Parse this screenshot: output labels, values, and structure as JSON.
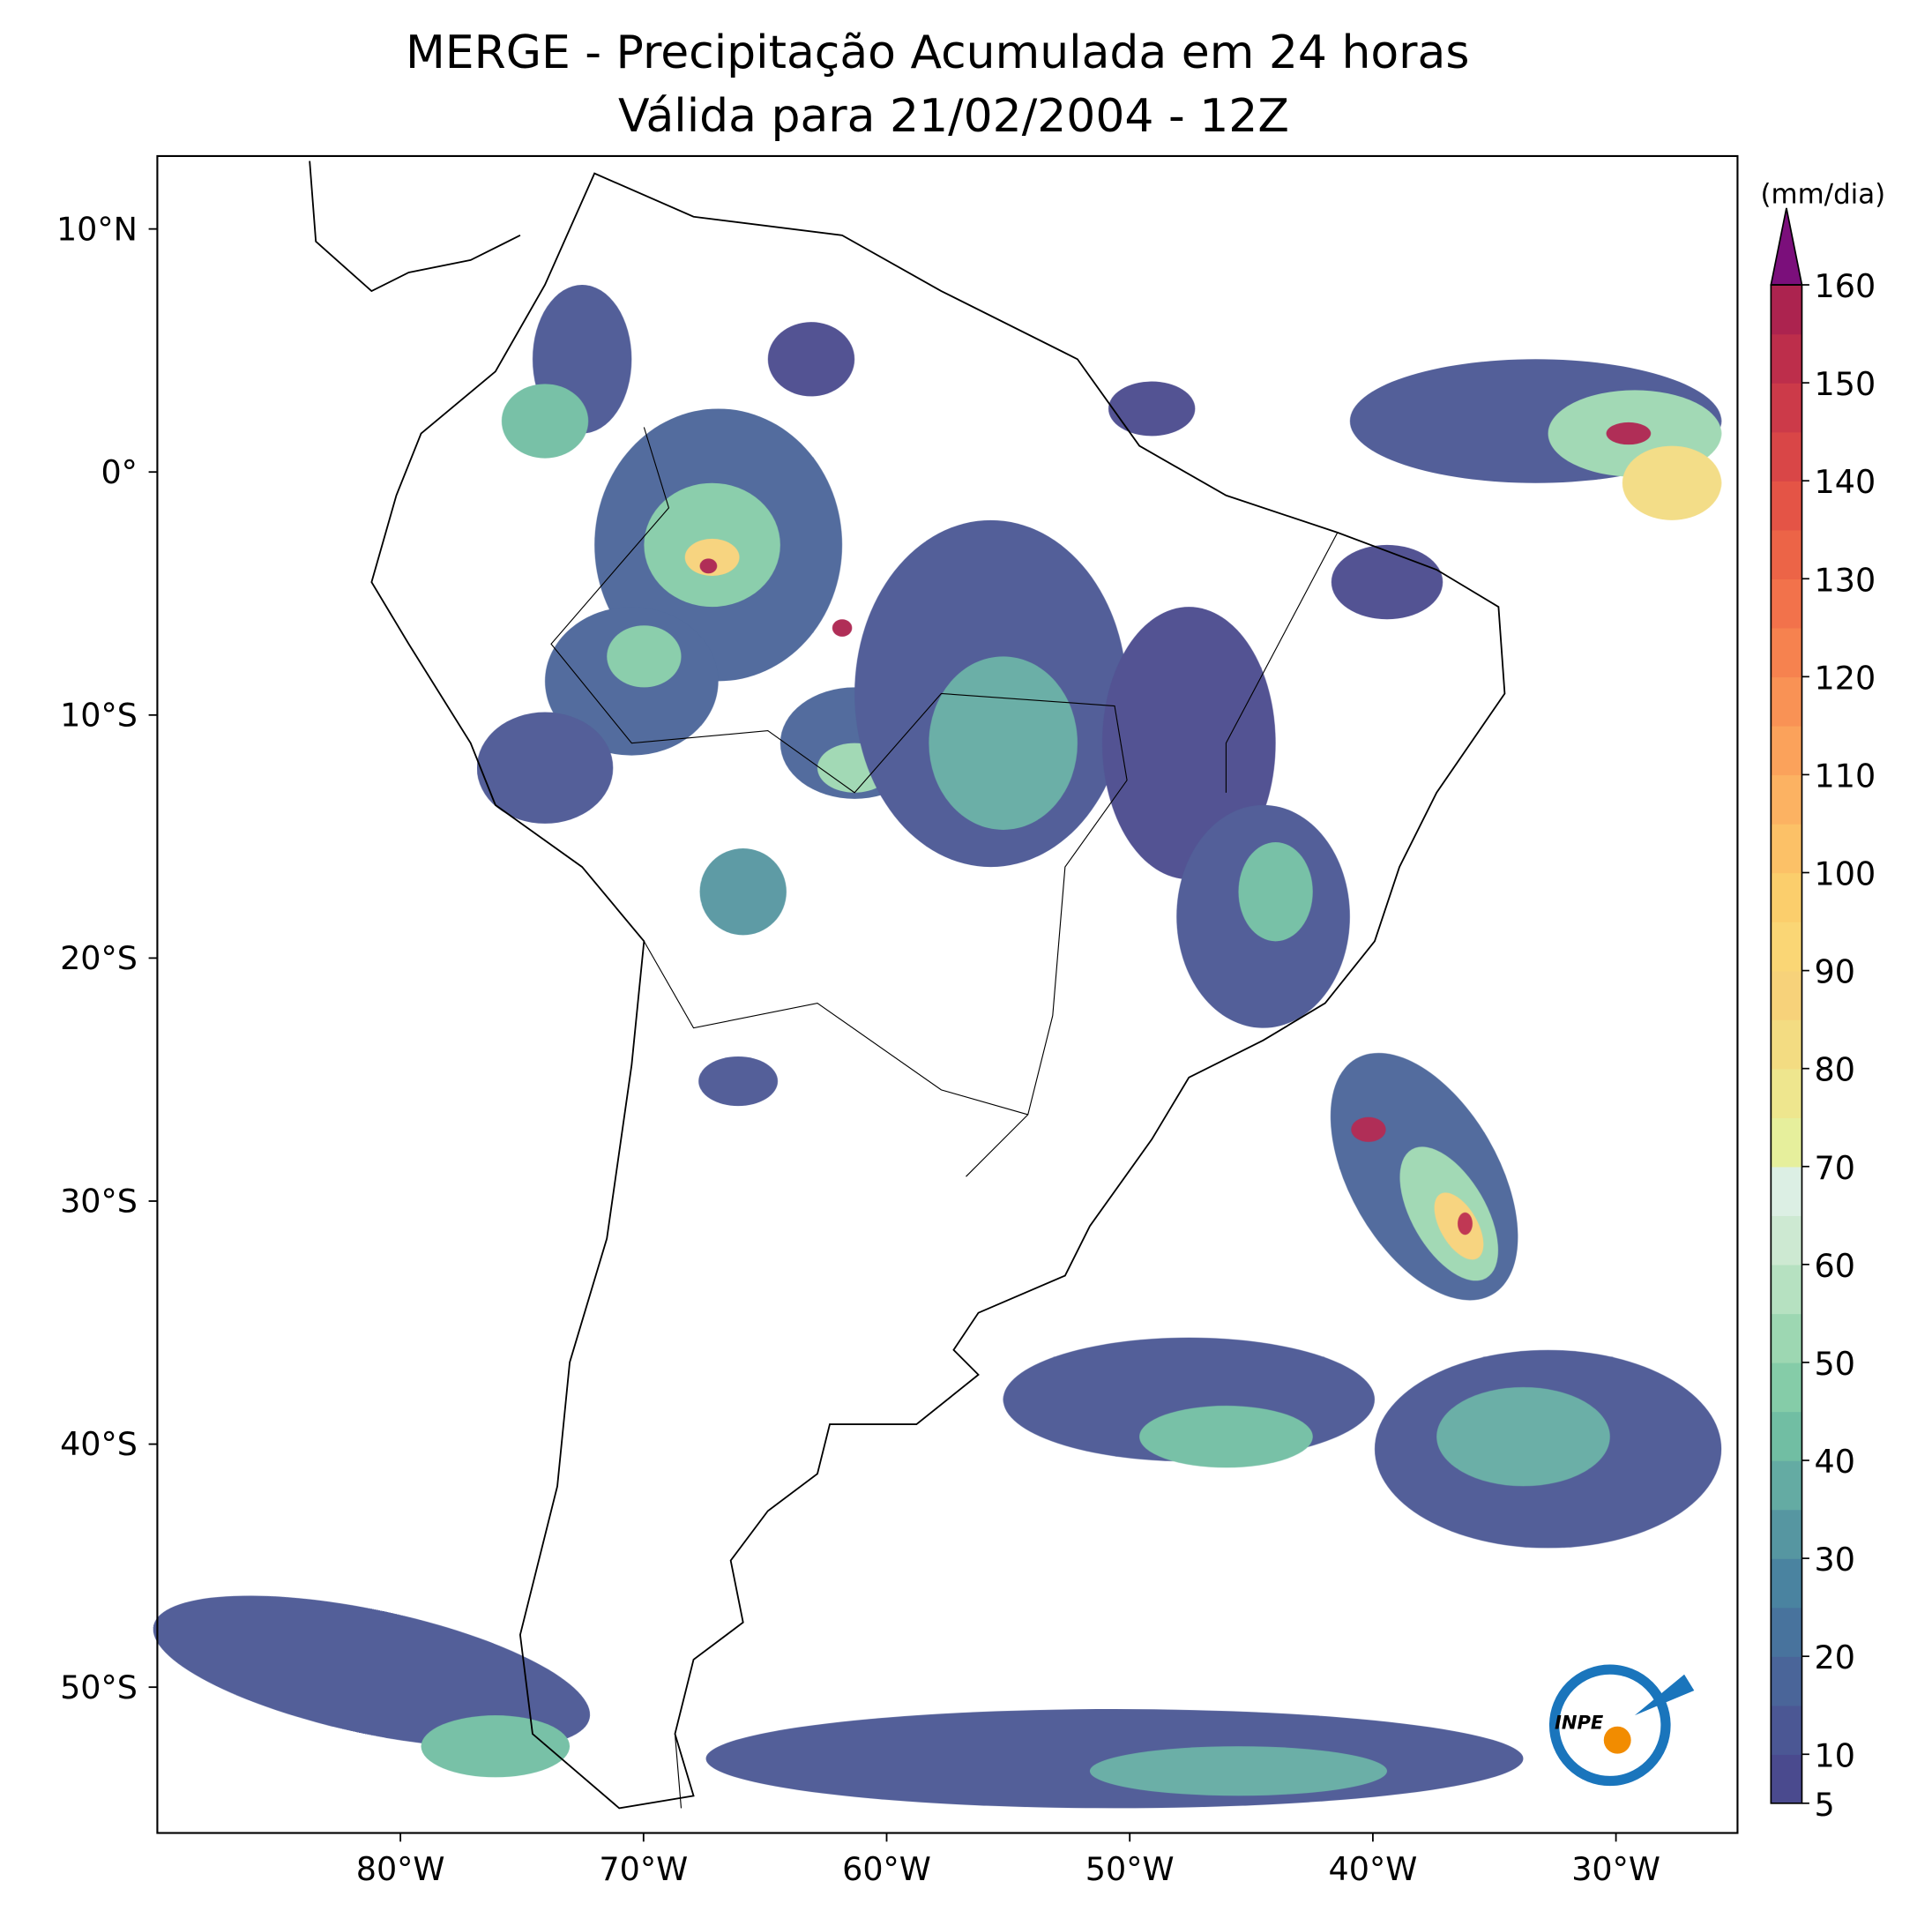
{
  "chart_data": {
    "type": "map",
    "title": "MERGE - Precipitação Acumulada em 24 horas",
    "subtitle": "Válida para 21/02/2004 - 12Z",
    "xlim": [
      -90,
      -25
    ],
    "ylim": [
      -56,
      13
    ],
    "xticks": [
      {
        "value": -80,
        "label": "80°W"
      },
      {
        "value": -70,
        "label": "70°W"
      },
      {
        "value": -60,
        "label": "60°W"
      },
      {
        "value": -50,
        "label": "50°W"
      },
      {
        "value": -40,
        "label": "40°W"
      },
      {
        "value": -30,
        "label": "30°W"
      }
    ],
    "yticks": [
      {
        "value": 10,
        "label": "10°N"
      },
      {
        "value": 0,
        "label": "0°"
      },
      {
        "value": -10,
        "label": "10°S"
      },
      {
        "value": -20,
        "label": "20°S"
      },
      {
        "value": -30,
        "label": "30°S"
      },
      {
        "value": -40,
        "label": "40°S"
      },
      {
        "value": -50,
        "label": "50°S"
      }
    ],
    "colorbar": {
      "label": "(mm/dia)",
      "lim": [
        5,
        160
      ],
      "ticks": [
        5,
        10,
        20,
        30,
        40,
        50,
        60,
        70,
        80,
        90,
        100,
        110,
        120,
        130,
        140,
        150,
        160
      ],
      "levels": [
        5,
        10,
        15,
        20,
        25,
        30,
        35,
        40,
        45,
        50,
        55,
        60,
        65,
        70,
        75,
        80,
        85,
        90,
        95,
        100,
        105,
        110,
        115,
        120,
        125,
        130,
        135,
        140,
        145,
        150,
        155,
        160
      ],
      "colors": [
        "#4a4a8e",
        "#4b5794",
        "#4a6599",
        "#48739d",
        "#4a83a0",
        "#5696a1",
        "#64aba3",
        "#71bea3",
        "#85cca8",
        "#9dd7b2",
        "#b6e1c1",
        "#cde9d2",
        "#dcefe4",
        "#e6ef9c",
        "#eee68e",
        "#f3dc82",
        "#f7d27a",
        "#fad675",
        "#fbce6c",
        "#fcc167",
        "#fcb262",
        "#fba25b",
        "#f99255",
        "#f6824f",
        "#f2724b",
        "#ec6447",
        "#e45446",
        "#d94647",
        "#cc3a49",
        "#bd2e4b",
        "#ac234f"
      ],
      "extend_color": "#7b0f7b"
    },
    "logo_text": "INPE"
  }
}
